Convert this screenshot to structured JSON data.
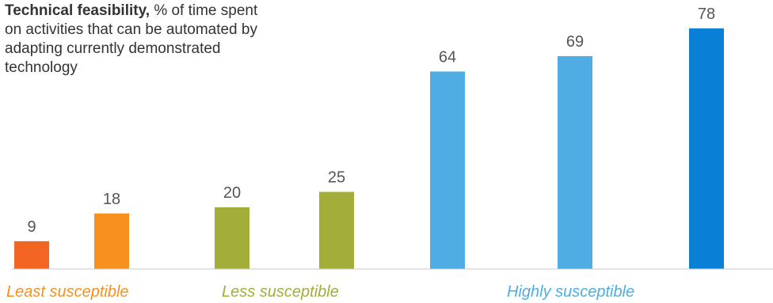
{
  "chart_data": {
    "type": "bar",
    "title": "Technical feasibility,",
    "subtitle": "% of time spent on activities that can be automated by adapting currently demonstrated technology",
    "xlabel": "",
    "ylabel": "",
    "ylim": [
      0,
      100
    ],
    "grid": false,
    "values": [
      9,
      18,
      20,
      25,
      64,
      69,
      78
    ],
    "colors": [
      "#f26522",
      "#f7901e",
      "#a3ad3a",
      "#a3ad3a",
      "#4fade3",
      "#4fade3",
      "#0a7fd6"
    ],
    "groups": [
      {
        "label": "Least susceptible",
        "color": "#f7901e",
        "bars": [
          0,
          1
        ]
      },
      {
        "label": "Less susceptible",
        "color": "#a3ad3a",
        "bars": [
          2,
          3
        ]
      },
      {
        "label": "Highly susceptible",
        "color": "#4fade3",
        "bars": [
          4,
          5,
          6
        ]
      }
    ]
  }
}
